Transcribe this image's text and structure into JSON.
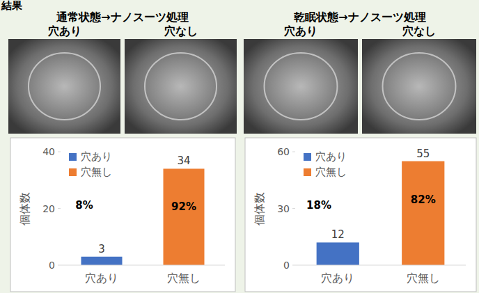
{
  "heading": "結果",
  "panels": [
    {
      "title": "通常状態→ナノスーツ処理",
      "image_labels": [
        "穴あり",
        "穴なし"
      ]
    },
    {
      "title": "乾眠状態→ナノスーツ処理",
      "image_labels": [
        "穴あり",
        "穴なし"
      ]
    }
  ],
  "chart_data": [
    {
      "type": "bar",
      "y_label": "個体数",
      "categories": [
        "穴あり",
        "穴無し"
      ],
      "values": [
        3,
        34
      ],
      "colors": [
        "#4472c4",
        "#ed7d31"
      ],
      "ylim": [
        0,
        40
      ],
      "yticks": [
        0,
        20,
        40
      ],
      "grid": false,
      "legend": "upper left",
      "data_labels": true,
      "annotations": [
        "8%",
        "92%"
      ]
    },
    {
      "type": "bar",
      "y_label": "個体数",
      "categories": [
        "穴あり",
        "穴無し"
      ],
      "values": [
        12,
        55
      ],
      "colors": [
        "#4472c4",
        "#ed7d31"
      ],
      "ylim": [
        0,
        60
      ],
      "yticks": [
        0,
        30,
        60
      ],
      "grid": false,
      "legend": "upper left",
      "data_labels": true,
      "annotations": [
        "18%",
        "82%"
      ]
    }
  ]
}
